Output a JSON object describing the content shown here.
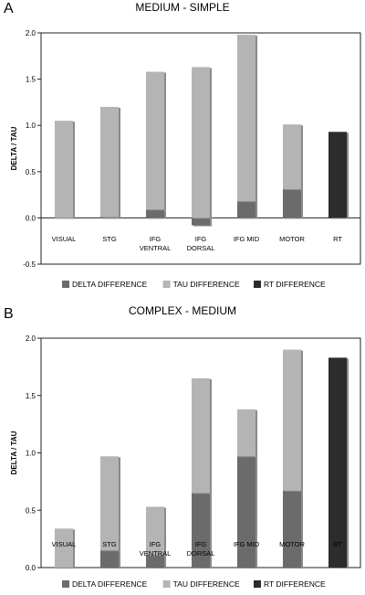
{
  "panels": [
    {
      "letter": "A"
    },
    {
      "letter": "B"
    }
  ],
  "chart_data": [
    {
      "type": "bar",
      "stacked": true,
      "title": "MEDIUM - SIMPLE",
      "ylabel": "DELTA / TAU",
      "xlabel": "",
      "ylim": [
        -0.5,
        2.0
      ],
      "yticks": [
        "-0.5",
        "0.0",
        "0.5",
        "1.0",
        "1.5",
        "2.0"
      ],
      "grid": false,
      "legend_position": "bottom",
      "categories": [
        [
          "VISUAL"
        ],
        [
          "STG"
        ],
        [
          "IFG",
          "VENTRAL"
        ],
        [
          "IFG",
          "DORSAL"
        ],
        [
          "IFG MID"
        ],
        [
          "MOTOR"
        ],
        [
          "RT"
        ]
      ],
      "series": [
        {
          "name": "DELTA DIFFERENCE",
          "color": "#6b6b6b",
          "values": [
            0.0,
            0.01,
            0.09,
            -0.08,
            0.18,
            0.31,
            0
          ]
        },
        {
          "name": "TAU DIFFERENCE",
          "color": "#b4b4b4",
          "values": [
            1.05,
            1.19,
            1.49,
            1.63,
            1.8,
            0.7,
            0
          ]
        },
        {
          "name": "RT DIFFERENCE",
          "color": "#2c2c2c",
          "values": [
            0,
            0,
            0,
            0,
            0,
            0,
            0.93
          ]
        }
      ]
    },
    {
      "type": "bar",
      "stacked": true,
      "title": "COMPLEX - MEDIUM",
      "ylabel": "DELTA / TAU",
      "xlabel": "",
      "ylim": [
        0.0,
        2.0
      ],
      "yticks": [
        "0.0",
        "0.5",
        "1.0",
        "1.5",
        "2.0"
      ],
      "grid": false,
      "legend_position": "bottom",
      "categories": [
        [
          "VISUAL"
        ],
        [
          "STG"
        ],
        [
          "IFG",
          "VENTRAL"
        ],
        [
          "IFG",
          "DORSAL"
        ],
        [
          "IFG MID"
        ],
        [
          "MOTOR"
        ],
        [
          "RT"
        ]
      ],
      "series": [
        {
          "name": "DELTA DIFFERENCE",
          "color": "#6b6b6b",
          "values": [
            0.0,
            0.15,
            0.11,
            0.65,
            0.97,
            0.67,
            0
          ]
        },
        {
          "name": "TAU DIFFERENCE",
          "color": "#b4b4b4",
          "values": [
            0.34,
            0.82,
            0.42,
            1.0,
            0.41,
            1.23,
            0
          ]
        },
        {
          "name": "RT DIFFERENCE",
          "color": "#2c2c2c",
          "values": [
            0,
            0,
            0,
            0,
            0,
            0,
            1.83
          ]
        }
      ]
    }
  ]
}
